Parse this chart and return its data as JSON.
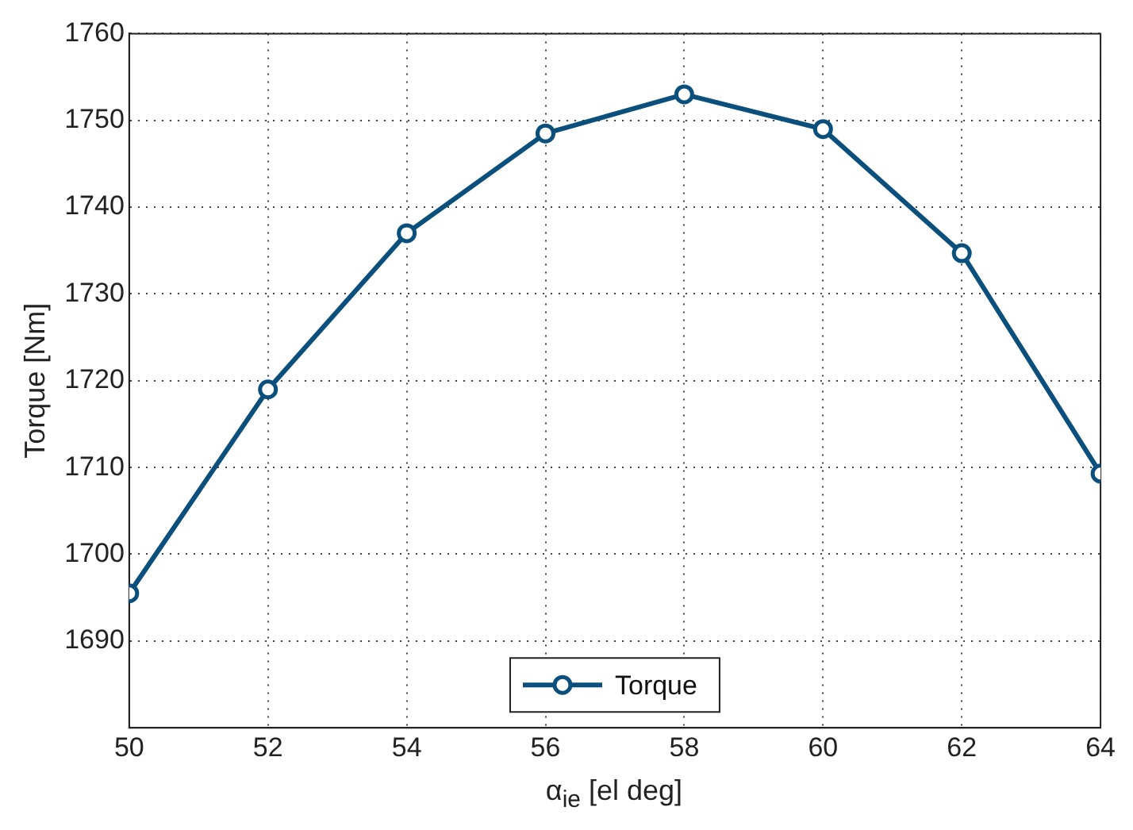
{
  "chart_data": {
    "type": "line",
    "xlabel": "α$_{ie}$ [el deg]",
    "ylabel": "Torque [Nm]",
    "x": [
      50,
      52,
      54,
      56,
      58,
      60,
      62,
      64
    ],
    "series": [
      {
        "name": "Torque",
        "color": "#0b4f7c",
        "values": [
          1695.5,
          1719,
          1737,
          1748.5,
          1753,
          1749,
          1734.7,
          1709.3
        ]
      }
    ],
    "xlim": [
      50,
      64
    ],
    "xticks": [
      50,
      52,
      54,
      56,
      58,
      60,
      62,
      64
    ],
    "ylim": [
      1680,
      1760
    ],
    "yticks": [
      1690,
      1700,
      1710,
      1720,
      1730,
      1740,
      1750,
      1760
    ],
    "grid": true,
    "legend": "bottom",
    "marker": "circle",
    "line_style": "solid"
  }
}
